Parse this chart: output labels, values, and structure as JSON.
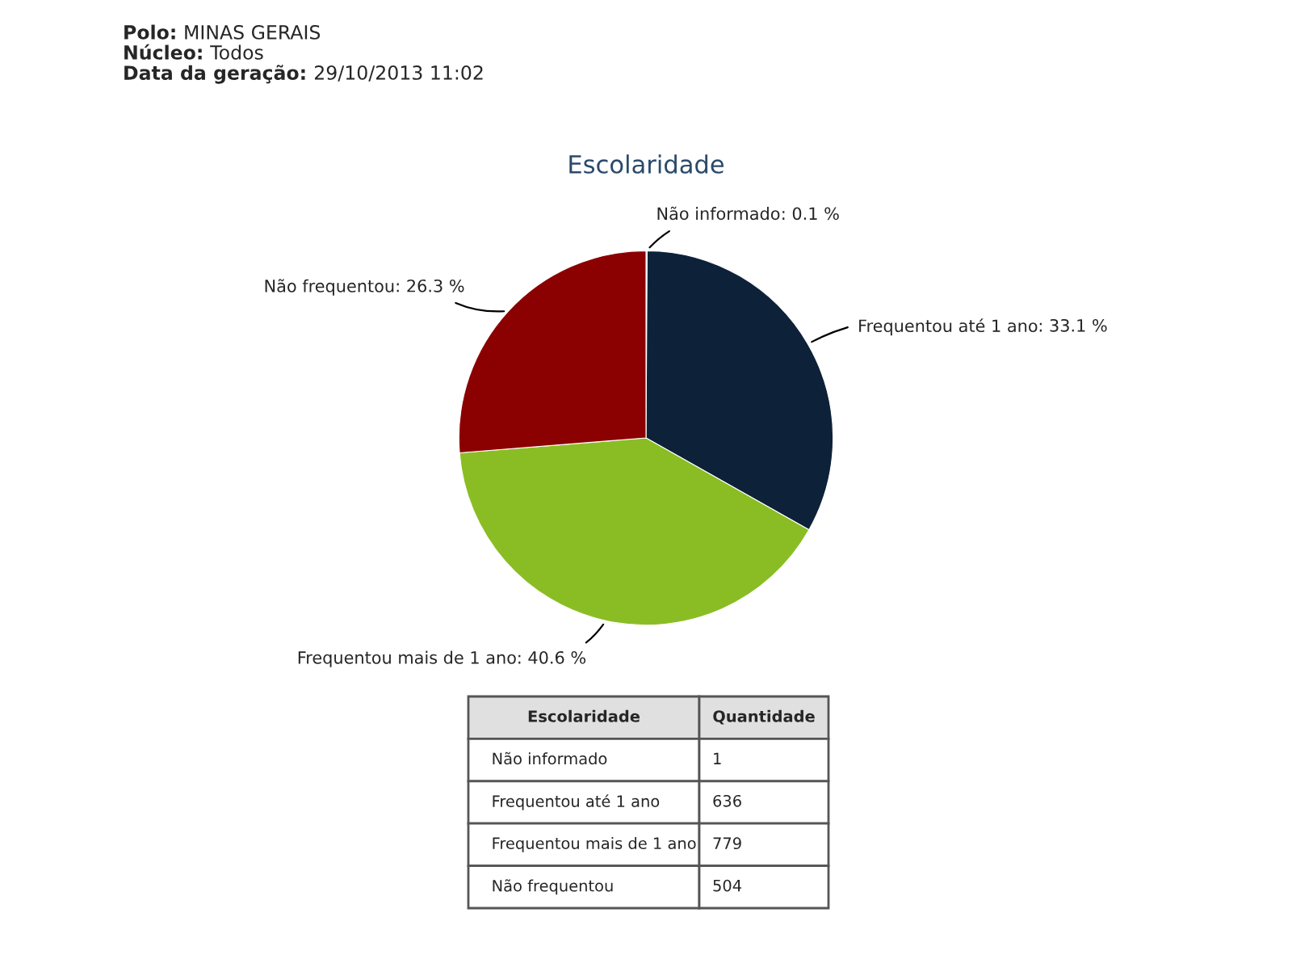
{
  "chart_data": [
    {
      "type": "pie",
      "title": "Escolaridade",
      "categories": [
        "Não informado",
        "Frequentou até 1 ano",
        "Frequentou mais de 1 ano",
        "Não frequentou"
      ],
      "values": [
        0.1,
        33.1,
        40.6,
        26.3
      ],
      "value_labels": [
        ": 0.1 %",
        ": 33.1 %",
        ": 40.6 %",
        ": 26.3 %"
      ],
      "colors": [
        "#4a6a9a",
        "#0d2139",
        "#8abd24",
        "#8b0000"
      ],
      "annotations": [
        "Polo: MINAS GERAIS",
        "Núcleo: Todos",
        "Data da geração: 29/10/2013 11:02"
      ]
    },
    {
      "type": "other",
      "xlabel": "Escolaridade",
      "ylabel": "Quantidade",
      "categories": [
        "Não informado",
        "Frequentou até 1 ano",
        "Frequentou mais de 1 ano",
        "Não frequentou"
      ],
      "values": [
        1,
        636,
        779,
        504
      ],
      "value_labels": [
        "1",
        "636",
        "779",
        "504"
      ]
    }
  ]
}
